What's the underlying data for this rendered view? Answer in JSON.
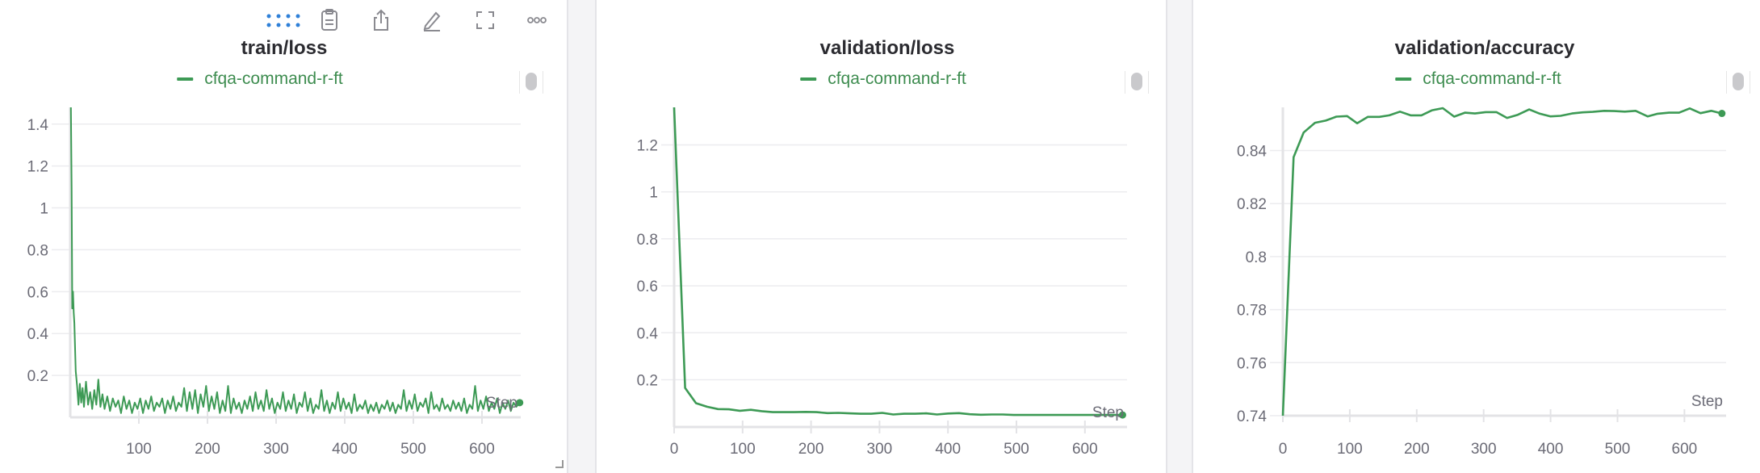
{
  "toolbar": {
    "icons": [
      "drag-handle-icon",
      "clipboard-icon",
      "share-icon",
      "edit-icon",
      "fullscreen-icon",
      "more-icon"
    ]
  },
  "colors": {
    "series": "#3d9a55",
    "grid": "#ececef",
    "tick_text": "#6b6b76",
    "title": "#2b2b30",
    "drag_handle": "#2f80d8"
  },
  "chart_data": [
    {
      "type": "line",
      "title": "train/loss",
      "legend": [
        "cfqa-command-r-ft"
      ],
      "xlabel": "Step",
      "xticks": [
        "100",
        "200",
        "300",
        "400",
        "500",
        "600"
      ],
      "yticks": [
        "0.2",
        "0.4",
        "0.6",
        "0.8",
        "1",
        "1.2",
        "1.4"
      ],
      "xlim": [
        0,
        656
      ],
      "ylim": [
        0,
        1.48
      ],
      "grid": true,
      "legend_position": "top",
      "series": [
        {
          "name": "cfqa-command-r-ft",
          "points": [
            [
              1,
              1.48
            ],
            [
              2,
              1.1
            ],
            [
              3,
              0.52
            ],
            [
              4,
              0.6
            ],
            [
              5,
              0.5
            ],
            [
              6,
              0.45
            ],
            [
              8,
              0.22
            ],
            [
              10,
              0.15
            ],
            [
              12,
              0.06
            ],
            [
              14,
              0.16
            ],
            [
              16,
              0.07
            ],
            [
              18,
              0.14
            ],
            [
              20,
              0.05
            ],
            [
              23,
              0.17
            ],
            [
              26,
              0.06
            ],
            [
              29,
              0.12
            ],
            [
              32,
              0.04
            ],
            [
              35,
              0.13
            ],
            [
              38,
              0.06
            ],
            [
              41,
              0.18
            ],
            [
              44,
              0.05
            ],
            [
              47,
              0.11
            ],
            [
              50,
              0.04
            ],
            [
              54,
              0.1
            ],
            [
              58,
              0.03
            ],
            [
              62,
              0.09
            ],
            [
              66,
              0.05
            ],
            [
              70,
              0.08
            ],
            [
              74,
              0.02
            ],
            [
              78,
              0.1
            ],
            [
              82,
              0.04
            ],
            [
              86,
              0.08
            ],
            [
              90,
              0.02
            ],
            [
              94,
              0.07
            ],
            [
              98,
              0.04
            ],
            [
              102,
              0.09
            ],
            [
              106,
              0.02
            ],
            [
              110,
              0.08
            ],
            [
              114,
              0.04
            ],
            [
              118,
              0.1
            ],
            [
              122,
              0.03
            ],
            [
              126,
              0.07
            ],
            [
              130,
              0.05
            ],
            [
              134,
              0.09
            ],
            [
              138,
              0.02
            ],
            [
              142,
              0.08
            ],
            [
              146,
              0.04
            ],
            [
              150,
              0.1
            ],
            [
              154,
              0.03
            ],
            [
              158,
              0.07
            ],
            [
              162,
              0.05
            ],
            [
              166,
              0.14
            ],
            [
              170,
              0.03
            ],
            [
              174,
              0.12
            ],
            [
              178,
              0.04
            ],
            [
              182,
              0.13
            ],
            [
              186,
              0.02
            ],
            [
              190,
              0.11
            ],
            [
              194,
              0.05
            ],
            [
              198,
              0.15
            ],
            [
              202,
              0.03
            ],
            [
              206,
              0.1
            ],
            [
              210,
              0.04
            ],
            [
              214,
              0.12
            ],
            [
              218,
              0.02
            ],
            [
              222,
              0.08
            ],
            [
              226,
              0.03
            ],
            [
              230,
              0.15
            ],
            [
              234,
              0.02
            ],
            [
              238,
              0.09
            ],
            [
              242,
              0.04
            ],
            [
              246,
              0.07
            ],
            [
              250,
              0.02
            ],
            [
              254,
              0.08
            ],
            [
              258,
              0.04
            ],
            [
              262,
              0.1
            ],
            [
              266,
              0.03
            ],
            [
              270,
              0.12
            ],
            [
              274,
              0.04
            ],
            [
              278,
              0.08
            ],
            [
              282,
              0.03
            ],
            [
              286,
              0.13
            ],
            [
              290,
              0.04
            ],
            [
              294,
              0.09
            ],
            [
              298,
              0.02
            ],
            [
              302,
              0.07
            ],
            [
              306,
              0.04
            ],
            [
              310,
              0.12
            ],
            [
              314,
              0.03
            ],
            [
              318,
              0.08
            ],
            [
              322,
              0.04
            ],
            [
              326,
              0.11
            ],
            [
              330,
              0.02
            ],
            [
              334,
              0.07
            ],
            [
              338,
              0.05
            ],
            [
              342,
              0.12
            ],
            [
              346,
              0.03
            ],
            [
              350,
              0.09
            ],
            [
              354,
              0.02
            ],
            [
              358,
              0.06
            ],
            [
              362,
              0.04
            ],
            [
              366,
              0.13
            ],
            [
              370,
              0.03
            ],
            [
              374,
              0.08
            ],
            [
              378,
              0.02
            ],
            [
              382,
              0.07
            ],
            [
              386,
              0.04
            ],
            [
              390,
              0.12
            ],
            [
              394,
              0.03
            ],
            [
              398,
              0.09
            ],
            [
              402,
              0.04
            ],
            [
              406,
              0.07
            ],
            [
              410,
              0.02
            ],
            [
              414,
              0.11
            ],
            [
              418,
              0.03
            ],
            [
              422,
              0.06
            ],
            [
              426,
              0.04
            ],
            [
              430,
              0.08
            ],
            [
              434,
              0.02
            ],
            [
              438,
              0.06
            ],
            [
              442,
              0.03
            ],
            [
              446,
              0.07
            ],
            [
              450,
              0.02
            ],
            [
              454,
              0.06
            ],
            [
              458,
              0.04
            ],
            [
              462,
              0.08
            ],
            [
              466,
              0.03
            ],
            [
              470,
              0.07
            ],
            [
              474,
              0.02
            ],
            [
              478,
              0.06
            ],
            [
              482,
              0.04
            ],
            [
              486,
              0.13
            ],
            [
              490,
              0.03
            ],
            [
              494,
              0.08
            ],
            [
              498,
              0.04
            ],
            [
              502,
              0.11
            ],
            [
              506,
              0.03
            ],
            [
              510,
              0.07
            ],
            [
              514,
              0.05
            ],
            [
              518,
              0.09
            ],
            [
              522,
              0.02
            ],
            [
              526,
              0.12
            ],
            [
              530,
              0.04
            ],
            [
              534,
              0.06
            ],
            [
              538,
              0.03
            ],
            [
              542,
              0.09
            ],
            [
              546,
              0.04
            ],
            [
              550,
              0.06
            ],
            [
              554,
              0.03
            ],
            [
              558,
              0.08
            ],
            [
              562,
              0.04
            ],
            [
              566,
              0.07
            ],
            [
              570,
              0.03
            ],
            [
              574,
              0.09
            ],
            [
              578,
              0.02
            ],
            [
              582,
              0.06
            ],
            [
              586,
              0.04
            ],
            [
              590,
              0.15
            ],
            [
              594,
              0.03
            ],
            [
              598,
              0.08
            ],
            [
              602,
              0.04
            ],
            [
              606,
              0.1
            ],
            [
              610,
              0.03
            ],
            [
              614,
              0.07
            ],
            [
              618,
              0.04
            ],
            [
              622,
              0.09
            ],
            [
              626,
              0.02
            ],
            [
              630,
              0.07
            ],
            [
              634,
              0.04
            ],
            [
              638,
              0.08
            ],
            [
              642,
              0.03
            ],
            [
              646,
              0.07
            ],
            [
              650,
              0.05
            ],
            [
              655,
              0.07
            ]
          ]
        }
      ]
    },
    {
      "type": "line",
      "title": "validation/loss",
      "legend": [
        "cfqa-command-r-ft"
      ],
      "xlabel": "Step",
      "xticks": [
        "0",
        "100",
        "200",
        "300",
        "400",
        "500",
        "600"
      ],
      "yticks": [
        "0.2",
        "0.4",
        "0.6",
        "0.8",
        "1",
        "1.2"
      ],
      "xlim": [
        0,
        656
      ],
      "ylim": [
        0.04,
        1.36
      ],
      "grid": true,
      "legend_position": "top",
      "series": [
        {
          "name": "cfqa-command-r-ft",
          "points": [
            [
              0,
              1.36
            ],
            [
              16,
              0.165
            ],
            [
              32,
              0.1
            ],
            [
              48,
              0.085
            ],
            [
              64,
              0.075
            ],
            [
              80,
              0.074
            ],
            [
              96,
              0.068
            ],
            [
              112,
              0.072
            ],
            [
              128,
              0.066
            ],
            [
              144,
              0.062
            ],
            [
              160,
              0.062
            ],
            [
              176,
              0.062
            ],
            [
              192,
              0.063
            ],
            [
              208,
              0.062
            ],
            [
              224,
              0.058
            ],
            [
              240,
              0.059
            ],
            [
              256,
              0.057
            ],
            [
              272,
              0.055
            ],
            [
              288,
              0.055
            ],
            [
              304,
              0.059
            ],
            [
              320,
              0.052
            ],
            [
              336,
              0.055
            ],
            [
              352,
              0.055
            ],
            [
              368,
              0.057
            ],
            [
              384,
              0.052
            ],
            [
              400,
              0.056
            ],
            [
              416,
              0.058
            ],
            [
              432,
              0.053
            ],
            [
              448,
              0.051
            ],
            [
              464,
              0.052
            ],
            [
              480,
              0.052
            ],
            [
              496,
              0.05
            ],
            [
              512,
              0.05
            ],
            [
              528,
              0.05
            ],
            [
              544,
              0.05
            ],
            [
              560,
              0.05
            ],
            [
              576,
              0.05
            ],
            [
              592,
              0.05
            ],
            [
              608,
              0.05
            ],
            [
              624,
              0.05
            ],
            [
              640,
              0.05
            ],
            [
              655,
              0.05
            ]
          ]
        }
      ]
    },
    {
      "type": "line",
      "title": "validation/accuracy",
      "legend": [
        "cfqa-command-r-ft"
      ],
      "xlabel": "Step",
      "xticks": [
        "0",
        "100",
        "200",
        "300",
        "400",
        "500",
        "600"
      ],
      "yticks": [
        "0.74",
        "0.76",
        "0.78",
        "0.8",
        "0.82",
        "0.84"
      ],
      "xlim": [
        0,
        656
      ],
      "ylim": [
        0.74,
        0.8563
      ],
      "grid": true,
      "legend_position": "top",
      "series": [
        {
          "name": "cfqa-command-r-ft",
          "points": [
            [
              0,
              0.74
            ],
            [
              16,
              0.8375
            ],
            [
              31,
              0.8468
            ],
            [
              48,
              0.8505
            ],
            [
              64,
              0.8513
            ],
            [
              80,
              0.8528
            ],
            [
              96,
              0.853
            ],
            [
              111,
              0.8503
            ],
            [
              127,
              0.8527
            ],
            [
              144,
              0.8527
            ],
            [
              159,
              0.8533
            ],
            [
              175,
              0.8547
            ],
            [
              191,
              0.8533
            ],
            [
              207,
              0.8533
            ],
            [
              223,
              0.8552
            ],
            [
              239,
              0.856
            ],
            [
              256,
              0.8528
            ],
            [
              272,
              0.8543
            ],
            [
              287,
              0.854
            ],
            [
              303,
              0.8545
            ],
            [
              319,
              0.8545
            ],
            [
              335,
              0.8523
            ],
            [
              351,
              0.8535
            ],
            [
              368,
              0.8555
            ],
            [
              383,
              0.854
            ],
            [
              400,
              0.8529
            ],
            [
              415,
              0.8531
            ],
            [
              432,
              0.854
            ],
            [
              448,
              0.8544
            ],
            [
              463,
              0.8546
            ],
            [
              480,
              0.855
            ],
            [
              495,
              0.8549
            ],
            [
              511,
              0.8547
            ],
            [
              527,
              0.855
            ],
            [
              545,
              0.8529
            ],
            [
              560,
              0.8539
            ],
            [
              577,
              0.8543
            ],
            [
              592,
              0.8543
            ],
            [
              608,
              0.8559
            ],
            [
              624,
              0.8541
            ],
            [
              640,
              0.855
            ],
            [
              656,
              0.854
            ]
          ]
        }
      ]
    }
  ]
}
